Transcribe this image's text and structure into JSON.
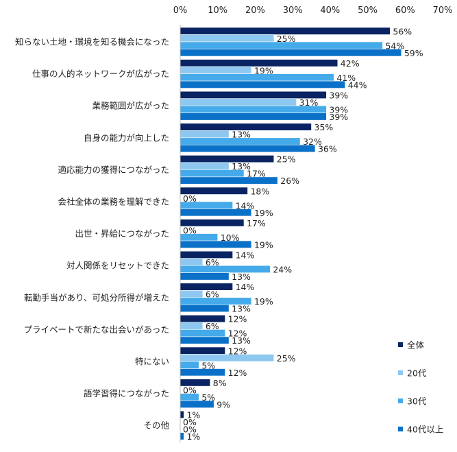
{
  "chart_data": {
    "type": "bar",
    "orientation": "horizontal",
    "title": "",
    "xlabel": "",
    "ylabel": "",
    "xlim": [
      0,
      70
    ],
    "x_ticks": [
      "0%",
      "10%",
      "20%",
      "30%",
      "40%",
      "50%",
      "60%",
      "70%"
    ],
    "tick_values": [
      0,
      10,
      20,
      30,
      40,
      50,
      60,
      70
    ],
    "grid": false,
    "legend_position": "bottom-right",
    "categories": [
      "知らない土地・環境を知る機会になった",
      "仕事の人的ネットワークが広がった",
      "業務範囲が広がった",
      "自身の能力が向上した",
      "適応能力の獲得につながった",
      "会社全体の業務を理解できた",
      "出世・昇給につながった",
      "対人関係をリセットできた",
      "転勤手当があり、可処分所得が増えた",
      "プライベートで新たな出会いがあった",
      "特にない",
      "語学習得につながった",
      "その他"
    ],
    "series": [
      {
        "name": "全体",
        "color": "#0a2463",
        "values": [
          56,
          42,
          39,
          35,
          25,
          18,
          17,
          14,
          14,
          12,
          12,
          8,
          1
        ]
      },
      {
        "name": "20代",
        "color": "#8ec8f0",
        "values": [
          25,
          19,
          31,
          13,
          13,
          0,
          0,
          6,
          6,
          6,
          25,
          0,
          0
        ]
      },
      {
        "name": "30代",
        "color": "#45aaea",
        "values": [
          54,
          41,
          39,
          32,
          17,
          14,
          10,
          24,
          19,
          12,
          5,
          5,
          0
        ]
      },
      {
        "name": "40代以上",
        "color": "#0b71c8",
        "values": [
          59,
          44,
          39,
          36,
          26,
          19,
          19,
          13,
          13,
          13,
          12,
          9,
          1
        ]
      }
    ],
    "value_suffix": "%"
  }
}
